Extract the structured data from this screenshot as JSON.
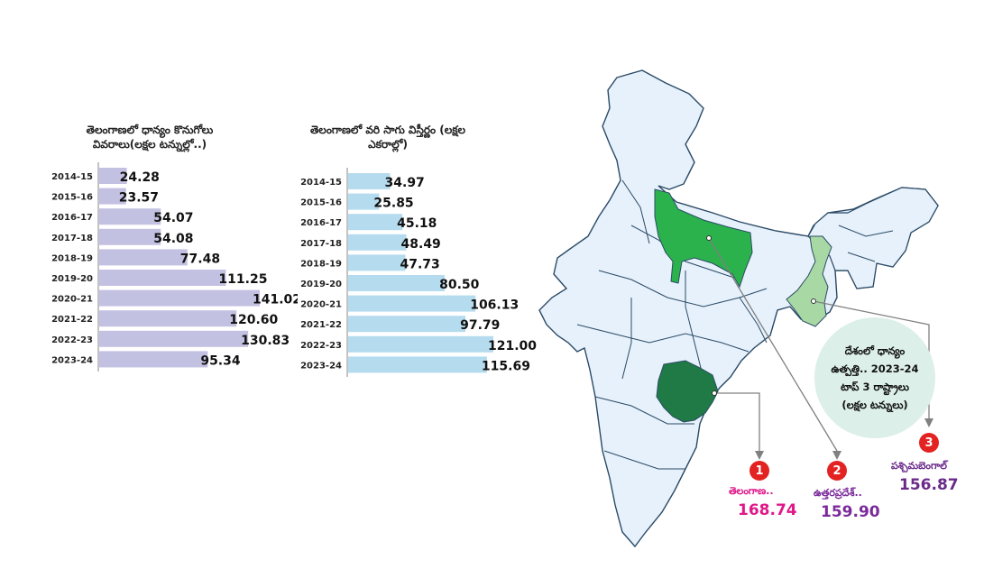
{
  "chart_data": [
    {
      "type": "bar",
      "orientation": "horizontal",
      "title": "తెలంగాణలో ధాన్యం కొనుగోలు వివరాలు(లక్షల టన్నుల్లో..)",
      "categories": [
        "2014-15",
        "2015-16",
        "2016-17",
        "2017-18",
        "2018-19",
        "2019-20",
        "2020-21",
        "2021-22",
        "2022-23",
        "2023-24"
      ],
      "values": [
        24.28,
        23.57,
        54.07,
        54.08,
        77.48,
        111.25,
        141.02,
        120.6,
        130.83,
        95.34
      ],
      "value_labels": [
        "24.28",
        "23.57",
        "54.07",
        "54.08",
        "77.48",
        "111.25",
        "141.02",
        "120.60",
        "130.83",
        "95.34"
      ],
      "xlim": [
        0,
        141.02
      ],
      "bar_color": "#c3c1e2",
      "data_labels": true,
      "grid": false
    },
    {
      "type": "bar",
      "orientation": "horizontal",
      "title": "తెలంగాణలో వరి సాగు విస్తీర్ణం (లక్షల ఎకరాల్లో)",
      "categories": [
        "2014-15",
        "2015-16",
        "2016-17",
        "2017-18",
        "2018-19",
        "2019-20",
        "2020-21",
        "2021-22",
        "2022-23",
        "2023-24"
      ],
      "values": [
        34.97,
        25.85,
        45.18,
        48.49,
        47.73,
        80.5,
        106.13,
        97.79,
        121.0,
        115.69
      ],
      "value_labels": [
        "34.97",
        "25.85",
        "45.18",
        "48.49",
        "47.73",
        "80.50",
        "106.13",
        "97.79",
        "121.00",
        "115.69"
      ],
      "xlim": [
        0,
        121.0
      ],
      "bar_color": "#b5dbef",
      "data_labels": true,
      "grid": false
    }
  ],
  "map": {
    "info_lines": [
      "దేశంలో ధాన్యం",
      "ఉత్పత్తి.. 2023-24",
      "టాప్ 3 రాష్ట్రాలు",
      "(లక్షల టన్నులు)"
    ],
    "top_states": [
      {
        "rank": "1",
        "name": "తెలంగాణ..",
        "value": "168.74",
        "color": "#e0188a",
        "fill": "#1f7a45"
      },
      {
        "rank": "2",
        "name": "ఉత్తరప్రదేశ్..",
        "value": "159.90",
        "color": "#7a2a9a",
        "fill": "#2bb24c"
      },
      {
        "rank": "3",
        "name": "పశ్చిమబెంగాల్",
        "value": "156.87",
        "color": "#6a2a8a",
        "fill": "#a8d9a4"
      }
    ],
    "land_color": "#e6f1fb",
    "border_color": "#2b4a66"
  }
}
